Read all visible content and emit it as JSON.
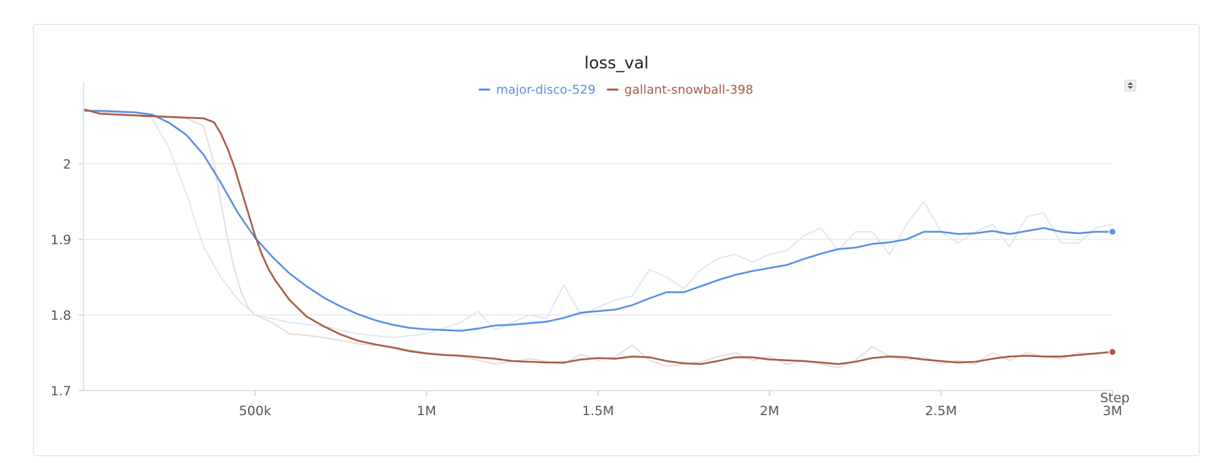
{
  "chart_data": {
    "type": "line",
    "title": "loss_val",
    "xlabel": "Step",
    "ylabel": "",
    "xlim": [
      0,
      3000000
    ],
    "ylim": [
      1.7,
      2.08
    ],
    "x_ticks": [
      {
        "value": 500000,
        "label": "500k"
      },
      {
        "value": 1000000,
        "label": "1M"
      },
      {
        "value": 1500000,
        "label": "1.5M"
      },
      {
        "value": 2000000,
        "label": "2M"
      },
      {
        "value": 2500000,
        "label": "2.5M"
      },
      {
        "value": 3000000,
        "label": "3M"
      }
    ],
    "y_ticks": [
      {
        "value": 1.7,
        "label": "1.7"
      },
      {
        "value": 1.8,
        "label": "1.8"
      },
      {
        "value": 1.9,
        "label": "1.9"
      },
      {
        "value": 2.0,
        "label": "2"
      }
    ],
    "grid": true,
    "legend_position": "top-center",
    "series": [
      {
        "name": "major-disco-529",
        "color": "#5b8ee3",
        "raw_color": "#dfe6f4",
        "smoothed": [
          [
            0,
            2.07
          ],
          [
            50000,
            2.07
          ],
          [
            100000,
            2.069
          ],
          [
            150000,
            2.068
          ],
          [
            200000,
            2.065
          ],
          [
            250000,
            2.054
          ],
          [
            300000,
            2.038
          ],
          [
            350000,
            2.012
          ],
          [
            400000,
            1.975
          ],
          [
            450000,
            1.935
          ],
          [
            500000,
            1.902
          ],
          [
            550000,
            1.877
          ],
          [
            600000,
            1.855
          ],
          [
            650000,
            1.838
          ],
          [
            700000,
            1.823
          ],
          [
            750000,
            1.811
          ],
          [
            800000,
            1.801
          ],
          [
            850000,
            1.793
          ],
          [
            900000,
            1.787
          ],
          [
            950000,
            1.783
          ],
          [
            1000000,
            1.781
          ],
          [
            1050000,
            1.78
          ],
          [
            1100000,
            1.779
          ],
          [
            1150000,
            1.782
          ],
          [
            1200000,
            1.786
          ],
          [
            1250000,
            1.787
          ],
          [
            1300000,
            1.789
          ],
          [
            1350000,
            1.791
          ],
          [
            1400000,
            1.796
          ],
          [
            1450000,
            1.803
          ],
          [
            1500000,
            1.805
          ],
          [
            1550000,
            1.807
          ],
          [
            1600000,
            1.813
          ],
          [
            1650000,
            1.822
          ],
          [
            1700000,
            1.83
          ],
          [
            1750000,
            1.83
          ],
          [
            1800000,
            1.838
          ],
          [
            1850000,
            1.846
          ],
          [
            1900000,
            1.853
          ],
          [
            1950000,
            1.858
          ],
          [
            2000000,
            1.862
          ],
          [
            2050000,
            1.866
          ],
          [
            2100000,
            1.874
          ],
          [
            2150000,
            1.881
          ],
          [
            2200000,
            1.887
          ],
          [
            2250000,
            1.889
          ],
          [
            2300000,
            1.894
          ],
          [
            2350000,
            1.896
          ],
          [
            2400000,
            1.9
          ],
          [
            2450000,
            1.91
          ],
          [
            2500000,
            1.91
          ],
          [
            2550000,
            1.907
          ],
          [
            2600000,
            1.908
          ],
          [
            2650000,
            1.911
          ],
          [
            2700000,
            1.907
          ],
          [
            2750000,
            1.911
          ],
          [
            2800000,
            1.915
          ],
          [
            2850000,
            1.91
          ],
          [
            2900000,
            1.908
          ],
          [
            2950000,
            1.91
          ],
          [
            3000000,
            1.91
          ]
        ],
        "raw": [
          [
            0,
            2.07
          ],
          [
            100000,
            2.068
          ],
          [
            200000,
            2.06
          ],
          [
            250000,
            2.02
          ],
          [
            300000,
            1.96
          ],
          [
            350000,
            1.89
          ],
          [
            400000,
            1.85
          ],
          [
            450000,
            1.82
          ],
          [
            500000,
            1.8
          ],
          [
            600000,
            1.79
          ],
          [
            700000,
            1.785
          ],
          [
            800000,
            1.775
          ],
          [
            900000,
            1.77
          ],
          [
            1000000,
            1.775
          ],
          [
            1100000,
            1.79
          ],
          [
            1150000,
            1.805
          ],
          [
            1200000,
            1.78
          ],
          [
            1300000,
            1.8
          ],
          [
            1350000,
            1.795
          ],
          [
            1400000,
            1.84
          ],
          [
            1450000,
            1.8
          ],
          [
            1500000,
            1.81
          ],
          [
            1550000,
            1.82
          ],
          [
            1600000,
            1.825
          ],
          [
            1650000,
            1.86
          ],
          [
            1700000,
            1.85
          ],
          [
            1750000,
            1.835
          ],
          [
            1800000,
            1.86
          ],
          [
            1850000,
            1.875
          ],
          [
            1900000,
            1.88
          ],
          [
            1950000,
            1.87
          ],
          [
            2000000,
            1.88
          ],
          [
            2050000,
            1.885
          ],
          [
            2100000,
            1.905
          ],
          [
            2150000,
            1.915
          ],
          [
            2200000,
            1.885
          ],
          [
            2250000,
            1.91
          ],
          [
            2300000,
            1.91
          ],
          [
            2350000,
            1.88
          ],
          [
            2400000,
            1.92
          ],
          [
            2450000,
            1.95
          ],
          [
            2500000,
            1.91
          ],
          [
            2550000,
            1.895
          ],
          [
            2600000,
            1.91
          ],
          [
            2650000,
            1.92
          ],
          [
            2700000,
            1.89
          ],
          [
            2750000,
            1.93
          ],
          [
            2800000,
            1.935
          ],
          [
            2850000,
            1.895
          ],
          [
            2900000,
            1.895
          ],
          [
            2950000,
            1.915
          ],
          [
            3000000,
            1.92
          ]
        ]
      },
      {
        "name": "gallant-snowball-398",
        "color": "#a65c46",
        "raw_color": "#eadbd6",
        "smoothed": [
          [
            0,
            2.072
          ],
          [
            50000,
            2.066
          ],
          [
            100000,
            2.065
          ],
          [
            150000,
            2.064
          ],
          [
            200000,
            2.063
          ],
          [
            250000,
            2.062
          ],
          [
            300000,
            2.061
          ],
          [
            350000,
            2.06
          ],
          [
            380000,
            2.055
          ],
          [
            400000,
            2.04
          ],
          [
            420000,
            2.02
          ],
          [
            440000,
            1.995
          ],
          [
            460000,
            1.965
          ],
          [
            480000,
            1.935
          ],
          [
            500000,
            1.905
          ],
          [
            520000,
            1.88
          ],
          [
            540000,
            1.86
          ],
          [
            560000,
            1.845
          ],
          [
            600000,
            1.82
          ],
          [
            650000,
            1.798
          ],
          [
            700000,
            1.785
          ],
          [
            750000,
            1.774
          ],
          [
            800000,
            1.766
          ],
          [
            850000,
            1.761
          ],
          [
            900000,
            1.757
          ],
          [
            950000,
            1.752
          ],
          [
            1000000,
            1.749
          ],
          [
            1050000,
            1.747
          ],
          [
            1100000,
            1.746
          ],
          [
            1150000,
            1.744
          ],
          [
            1200000,
            1.742
          ],
          [
            1250000,
            1.739
          ],
          [
            1300000,
            1.738
          ],
          [
            1350000,
            1.737
          ],
          [
            1400000,
            1.737
          ],
          [
            1450000,
            1.741
          ],
          [
            1500000,
            1.743
          ],
          [
            1550000,
            1.742
          ],
          [
            1600000,
            1.745
          ],
          [
            1650000,
            1.744
          ],
          [
            1700000,
            1.739
          ],
          [
            1750000,
            1.736
          ],
          [
            1800000,
            1.735
          ],
          [
            1850000,
            1.739
          ],
          [
            1900000,
            1.744
          ],
          [
            1950000,
            1.744
          ],
          [
            2000000,
            1.741
          ],
          [
            2050000,
            1.74
          ],
          [
            2100000,
            1.739
          ],
          [
            2150000,
            1.737
          ],
          [
            2200000,
            1.735
          ],
          [
            2250000,
            1.738
          ],
          [
            2300000,
            1.743
          ],
          [
            2350000,
            1.745
          ],
          [
            2400000,
            1.744
          ],
          [
            2450000,
            1.741
          ],
          [
            2500000,
            1.739
          ],
          [
            2550000,
            1.737
          ],
          [
            2600000,
            1.738
          ],
          [
            2650000,
            1.742
          ],
          [
            2700000,
            1.745
          ],
          [
            2750000,
            1.746
          ],
          [
            2800000,
            1.745
          ],
          [
            2850000,
            1.745
          ],
          [
            2900000,
            1.747
          ],
          [
            2950000,
            1.749
          ],
          [
            3000000,
            1.751
          ]
        ],
        "raw": [
          [
            0,
            2.072
          ],
          [
            100000,
            2.065
          ],
          [
            200000,
            2.062
          ],
          [
            300000,
            2.06
          ],
          [
            350000,
            2.05
          ],
          [
            380000,
            2.0
          ],
          [
            400000,
            1.95
          ],
          [
            420000,
            1.9
          ],
          [
            440000,
            1.86
          ],
          [
            460000,
            1.83
          ],
          [
            480000,
            1.81
          ],
          [
            500000,
            1.8
          ],
          [
            550000,
            1.79
          ],
          [
            600000,
            1.775
          ],
          [
            650000,
            1.773
          ],
          [
            700000,
            1.77
          ],
          [
            800000,
            1.762
          ],
          [
            900000,
            1.758
          ],
          [
            1000000,
            1.75
          ],
          [
            1100000,
            1.745
          ],
          [
            1200000,
            1.735
          ],
          [
            1300000,
            1.742
          ],
          [
            1400000,
            1.735
          ],
          [
            1450000,
            1.748
          ],
          [
            1500000,
            1.74
          ],
          [
            1550000,
            1.745
          ],
          [
            1600000,
            1.76
          ],
          [
            1650000,
            1.74
          ],
          [
            1700000,
            1.732
          ],
          [
            1800000,
            1.738
          ],
          [
            1850000,
            1.745
          ],
          [
            1900000,
            1.75
          ],
          [
            1950000,
            1.74
          ],
          [
            2000000,
            1.745
          ],
          [
            2050000,
            1.735
          ],
          [
            2100000,
            1.74
          ],
          [
            2150000,
            1.735
          ],
          [
            2200000,
            1.73
          ],
          [
            2250000,
            1.74
          ],
          [
            2300000,
            1.758
          ],
          [
            2350000,
            1.745
          ],
          [
            2400000,
            1.74
          ],
          [
            2450000,
            1.745
          ],
          [
            2500000,
            1.735
          ],
          [
            2550000,
            1.74
          ],
          [
            2600000,
            1.735
          ],
          [
            2650000,
            1.75
          ],
          [
            2700000,
            1.74
          ],
          [
            2750000,
            1.75
          ],
          [
            2800000,
            1.745
          ],
          [
            2850000,
            1.742
          ],
          [
            2900000,
            1.75
          ],
          [
            2950000,
            1.748
          ],
          [
            3000000,
            1.752
          ]
        ]
      }
    ]
  }
}
